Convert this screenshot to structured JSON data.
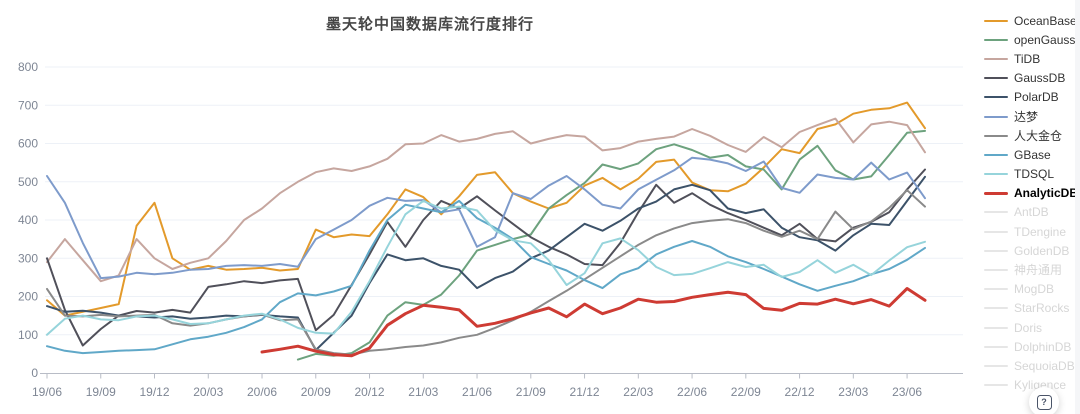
{
  "title": "墨天轮中国数据库流行度排行",
  "help_button": {
    "label": "?"
  },
  "colors": {
    "background": "#FFFFFF",
    "title": "#464646",
    "axis_label": "#7E8694",
    "grid": "#EDF1F7",
    "axis_line": "#B8BCC6",
    "legend_active": "#333333",
    "legend_inactive": "#D6D6D6"
  },
  "legend": [
    {
      "label": "OceanBase",
      "color": "#E39A2B",
      "active": true
    },
    {
      "label": "openGauss",
      "color": "#6DA27E",
      "active": true
    },
    {
      "label": "TiDB",
      "color": "#C6A69F",
      "active": true
    },
    {
      "label": "GaussDB",
      "color": "#50505A",
      "active": true
    },
    {
      "label": "PolarDB",
      "color": "#3C5269",
      "active": true
    },
    {
      "label": "达梦",
      "color": "#7E9BCB",
      "active": true
    },
    {
      "label": "人大金仓",
      "color": "#8A8A8A",
      "active": true
    },
    {
      "label": "GBase",
      "color": "#60A8C8",
      "active": true
    },
    {
      "label": "TDSQL",
      "color": "#96D4DB",
      "active": true
    },
    {
      "label": "AnalyticDB",
      "color": "#CE3B33",
      "active": true,
      "emphasis": true
    },
    {
      "label": "AntDB",
      "active": false
    },
    {
      "label": "TDengine",
      "active": false
    },
    {
      "label": "GoldenDB",
      "active": false
    },
    {
      "label": "神舟通用",
      "active": false
    },
    {
      "label": "MogDB",
      "active": false
    },
    {
      "label": "StarRocks",
      "active": false
    },
    {
      "label": "Doris",
      "active": false
    },
    {
      "label": "DolphinDB",
      "active": false
    },
    {
      "label": "SequoiaDB",
      "active": false
    },
    {
      "label": "Kyligence",
      "active": false
    }
  ],
  "chart_data": {
    "type": "line",
    "title": "墨天轮中国数据库流行度排行",
    "xlabel": "",
    "ylabel": "",
    "ylim": [
      0,
      800
    ],
    "y_ticks": [
      0,
      100,
      200,
      300,
      400,
      500,
      600,
      700,
      800
    ],
    "grid": true,
    "legend_position": "right",
    "x_monthly_start": "19/06",
    "x_monthly_end": "23/07",
    "x_tick_labels": [
      "19/06",
      "19/09",
      "19/12",
      "20/03",
      "20/06",
      "20/09",
      "20/12",
      "21/03",
      "21/06",
      "21/09",
      "21/12",
      "22/03",
      "22/06",
      "22/09",
      "22/12",
      "23/03",
      "23/06"
    ],
    "x_tick_every_n_points": 3,
    "series": [
      {
        "name": "OceanBase",
        "color": "#E39A2B",
        "width": 2,
        "values": [
          190,
          150,
          160,
          170,
          180,
          385,
          445,
          300,
          270,
          280,
          270,
          272,
          275,
          268,
          272,
          375,
          355,
          362,
          358,
          415,
          480,
          460,
          415,
          462,
          518,
          525,
          470,
          448,
          430,
          445,
          490,
          510,
          480,
          508,
          552,
          558,
          498,
          478,
          475,
          495,
          537,
          585,
          575,
          638,
          650,
          678,
          688,
          692,
          707,
          640
        ]
      },
      {
        "name": "openGauss",
        "color": "#6DA27E",
        "width": 2,
        "values": [
          null,
          null,
          null,
          null,
          null,
          null,
          null,
          null,
          null,
          null,
          null,
          null,
          null,
          null,
          35,
          50,
          45,
          52,
          80,
          150,
          185,
          178,
          205,
          255,
          320,
          335,
          350,
          362,
          430,
          465,
          497,
          545,
          533,
          548,
          585,
          598,
          583,
          563,
          570,
          540,
          532,
          480,
          558,
          594,
          530,
          506,
          514,
          570,
          628,
          633
        ]
      },
      {
        "name": "TiDB",
        "color": "#C6A69F",
        "width": 2,
        "values": [
          290,
          350,
          295,
          240,
          255,
          350,
          300,
          272,
          288,
          300,
          345,
          400,
          430,
          470,
          500,
          525,
          535,
          528,
          540,
          560,
          598,
          600,
          622,
          605,
          612,
          625,
          632,
          600,
          612,
          622,
          618,
          582,
          588,
          605,
          612,
          618,
          638,
          620,
          596,
          578,
          617,
          590,
          630,
          648,
          665,
          603,
          650,
          657,
          648,
          577
        ]
      },
      {
        "name": "GaussDB",
        "color": "#50505A",
        "width": 2,
        "values": [
          300,
          165,
          72,
          115,
          150,
          162,
          158,
          165,
          158,
          225,
          232,
          240,
          235,
          242,
          246,
          112,
          152,
          230,
          310,
          395,
          330,
          400,
          450,
          430,
          462,
          425,
          390,
          355,
          330,
          310,
          285,
          282,
          340,
          420,
          492,
          445,
          470,
          440,
          418,
          400,
          380,
          360,
          390,
          350,
          344,
          380,
          395,
          420,
          480,
          532
        ]
      },
      {
        "name": "PolarDB",
        "color": "#3C5269",
        "width": 2,
        "values": [
          175,
          160,
          163,
          158,
          150,
          148,
          145,
          148,
          142,
          145,
          150,
          148,
          152,
          148,
          145,
          60,
          105,
          150,
          235,
          310,
          295,
          300,
          280,
          270,
          222,
          248,
          265,
          300,
          320,
          355,
          390,
          372,
          398,
          430,
          448,
          480,
          492,
          478,
          430,
          418,
          428,
          380,
          355,
          347,
          320,
          360,
          390,
          387,
          450,
          513
        ]
      },
      {
        "name": "达梦",
        "color": "#7E9BCB",
        "width": 2,
        "values": [
          515,
          445,
          340,
          248,
          252,
          262,
          258,
          262,
          270,
          272,
          280,
          282,
          280,
          285,
          278,
          350,
          375,
          400,
          437,
          458,
          450,
          452,
          420,
          428,
          330,
          355,
          470,
          455,
          490,
          515,
          480,
          440,
          430,
          480,
          505,
          530,
          563,
          558,
          548,
          528,
          553,
          484,
          471,
          519,
          510,
          506,
          550,
          506,
          524,
          457
        ]
      },
      {
        "name": "人大金仓",
        "color": "#8A8A8A",
        "width": 2,
        "values": [
          220,
          150,
          148,
          152,
          148,
          150,
          152,
          130,
          124,
          130,
          140,
          148,
          153,
          138,
          140,
          62,
          52,
          48,
          58,
          62,
          68,
          72,
          80,
          92,
          100,
          118,
          138,
          160,
          188,
          215,
          245,
          275,
          305,
          335,
          360,
          378,
          392,
          398,
          402,
          392,
          372,
          356,
          372,
          350,
          422,
          376,
          396,
          432,
          478,
          435
        ]
      },
      {
        "name": "GBase",
        "color": "#60A8C8",
        "width": 2,
        "values": [
          70,
          58,
          52,
          55,
          58,
          60,
          62,
          75,
          88,
          95,
          105,
          120,
          140,
          185,
          208,
          203,
          213,
          228,
          320,
          400,
          440,
          430,
          420,
          450,
          405,
          380,
          350,
          303,
          285,
          268,
          243,
          222,
          258,
          274,
          310,
          330,
          345,
          330,
          305,
          290,
          272,
          252,
          232,
          215,
          228,
          240,
          258,
          272,
          296,
          327
        ]
      },
      {
        "name": "TDSQL",
        "color": "#96D4DB",
        "width": 2,
        "values": [
          100,
          142,
          150,
          140,
          138,
          148,
          150,
          140,
          128,
          130,
          140,
          150,
          155,
          140,
          118,
          105,
          103,
          160,
          240,
          330,
          415,
          450,
          430,
          435,
          425,
          373,
          347,
          339,
          295,
          230,
          261,
          339,
          352,
          321,
          277,
          256,
          259,
          274,
          290,
          277,
          283,
          251,
          264,
          295,
          262,
          283,
          256,
          294,
          329,
          343
        ]
      },
      {
        "name": "AnalyticDB",
        "color": "#CE3B33",
        "width": 3,
        "values": [
          null,
          null,
          null,
          null,
          null,
          null,
          null,
          null,
          null,
          null,
          null,
          null,
          55,
          62,
          70,
          57,
          48,
          45,
          65,
          125,
          155,
          177,
          172,
          165,
          122,
          130,
          142,
          157,
          170,
          147,
          180,
          155,
          170,
          193,
          185,
          187,
          198,
          205,
          211,
          205,
          169,
          164,
          182,
          180,
          193,
          181,
          192,
          175,
          221,
          190
        ]
      }
    ],
    "inactive_series": [
      "AntDB",
      "TDengine",
      "GoldenDB",
      "神舟通用",
      "MogDB",
      "StarRocks",
      "Doris",
      "DolphinDB",
      "SequoiaDB",
      "Kyligence"
    ]
  }
}
